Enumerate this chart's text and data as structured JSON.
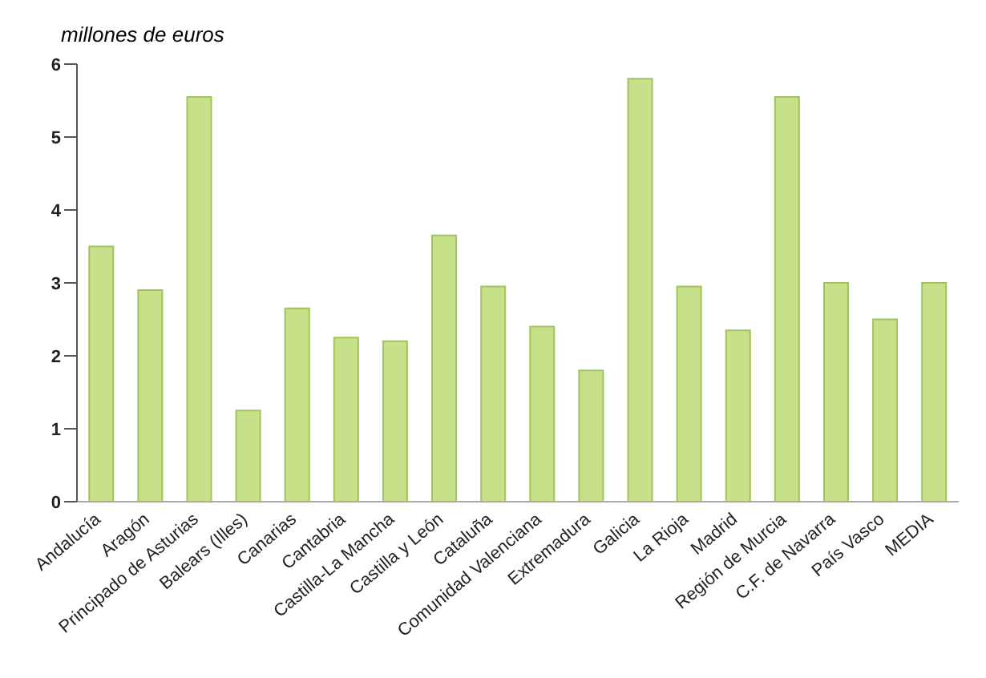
{
  "chart_data": {
    "type": "bar",
    "ylabel": "millones de euros",
    "categories": [
      "Andalucía",
      "Aragón",
      "Principado de Asturias",
      "Balears (Illes)",
      "Canarias",
      "Cantabria",
      "Castilla-La Mancha",
      "Castilla y León",
      "Cataluña",
      "Comunidad Valenciana",
      "Extremadura",
      "Galicia",
      "La Rioja",
      "Madrid",
      "Región de Murcia",
      "C.F. de Navarra",
      "País Vasco",
      "MEDIA"
    ],
    "values": [
      3.5,
      2.9,
      5.55,
      1.25,
      2.65,
      2.25,
      2.2,
      3.65,
      2.95,
      2.4,
      1.8,
      5.8,
      2.95,
      2.35,
      5.55,
      3.0,
      2.5,
      3.0
    ],
    "color": "#c8e08a",
    "ylim": [
      0,
      6
    ],
    "yticks": [
      0,
      1,
      2,
      3,
      4,
      5,
      6
    ],
    "grid": false,
    "legend": false
  }
}
